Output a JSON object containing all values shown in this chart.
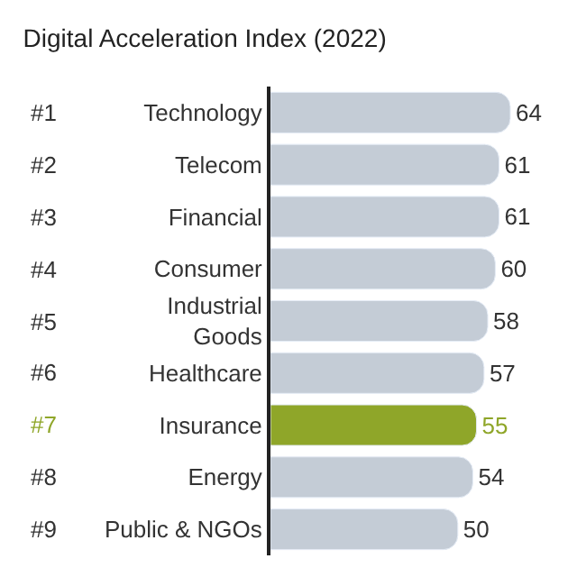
{
  "chart_data": {
    "type": "bar",
    "orientation": "horizontal",
    "title": "Digital Acceleration Index (2022)",
    "categories": [
      "Technology",
      "Telecom",
      "Financial",
      "Consumer",
      "Industrial\nGoods",
      "Healthcare",
      "Insurance",
      "Energy",
      "Public & NGOs"
    ],
    "values": [
      64,
      61,
      61,
      60,
      58,
      57,
      55,
      54,
      50
    ],
    "colors": [
      "#c4ccd6",
      "#c4ccd6",
      "#c4ccd6",
      "#c4ccd6",
      "#c4ccd6",
      "#c4ccd6",
      "#8fa629",
      "#c4ccd6",
      "#c4ccd6"
    ],
    "annotations": [
      "#1",
      "#2",
      "#3",
      "#4",
      "#5",
      "#6",
      "#7",
      "#8",
      "#9"
    ],
    "data_labels": true,
    "legend": false
  }
}
